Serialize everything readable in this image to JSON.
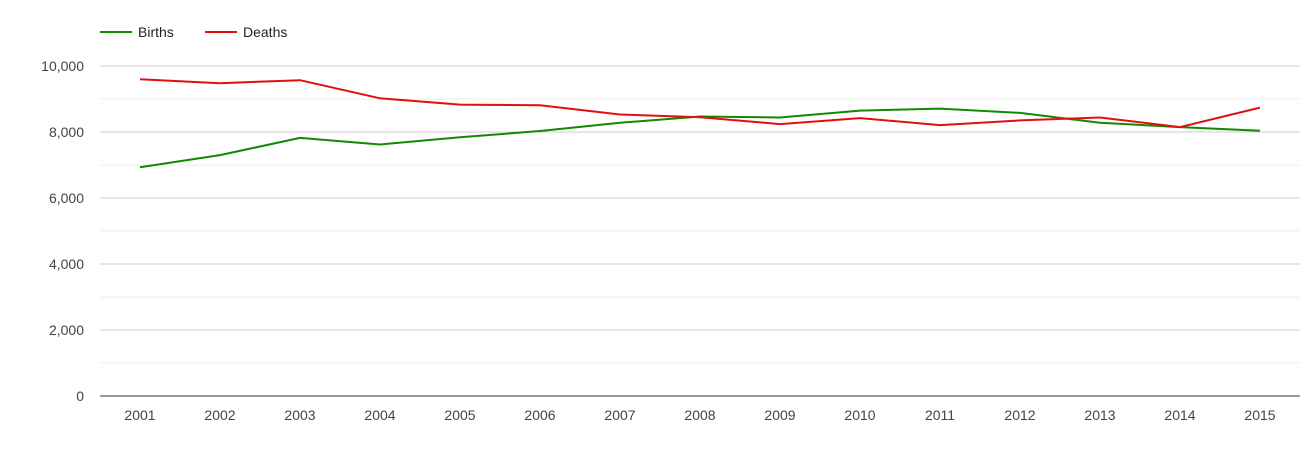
{
  "chart_data": {
    "type": "line",
    "title": "",
    "xlabel": "",
    "ylabel": "",
    "x": [
      "2001",
      "2002",
      "2003",
      "2004",
      "2005",
      "2006",
      "2007",
      "2008",
      "2009",
      "2010",
      "2011",
      "2012",
      "2013",
      "2014",
      "2015"
    ],
    "ylim": [
      0,
      10000
    ],
    "y_ticks": [
      {
        "value": 0,
        "label": "0"
      },
      {
        "value": 2000,
        "label": "2,000"
      },
      {
        "value": 4000,
        "label": "4,000"
      },
      {
        "value": 6000,
        "label": "6,000"
      },
      {
        "value": 8000,
        "label": "8,000"
      },
      {
        "value": 10000,
        "label": "10,000"
      }
    ],
    "minor_gridlines": [
      1000,
      3000,
      5000,
      7000,
      9000
    ],
    "grid": true,
    "legend_position": "top-left",
    "series": [
      {
        "name": "Births",
        "color": "#108a00",
        "values": [
          6930,
          7300,
          7820,
          7620,
          7840,
          8030,
          8280,
          8470,
          8440,
          8650,
          8710,
          8580,
          8280,
          8150,
          8040
        ]
      },
      {
        "name": "Deaths",
        "color": "#e01010",
        "values": [
          9600,
          9480,
          9570,
          9020,
          8830,
          8810,
          8530,
          8450,
          8240,
          8420,
          8210,
          8350,
          8440,
          8150,
          8740
        ]
      }
    ]
  }
}
